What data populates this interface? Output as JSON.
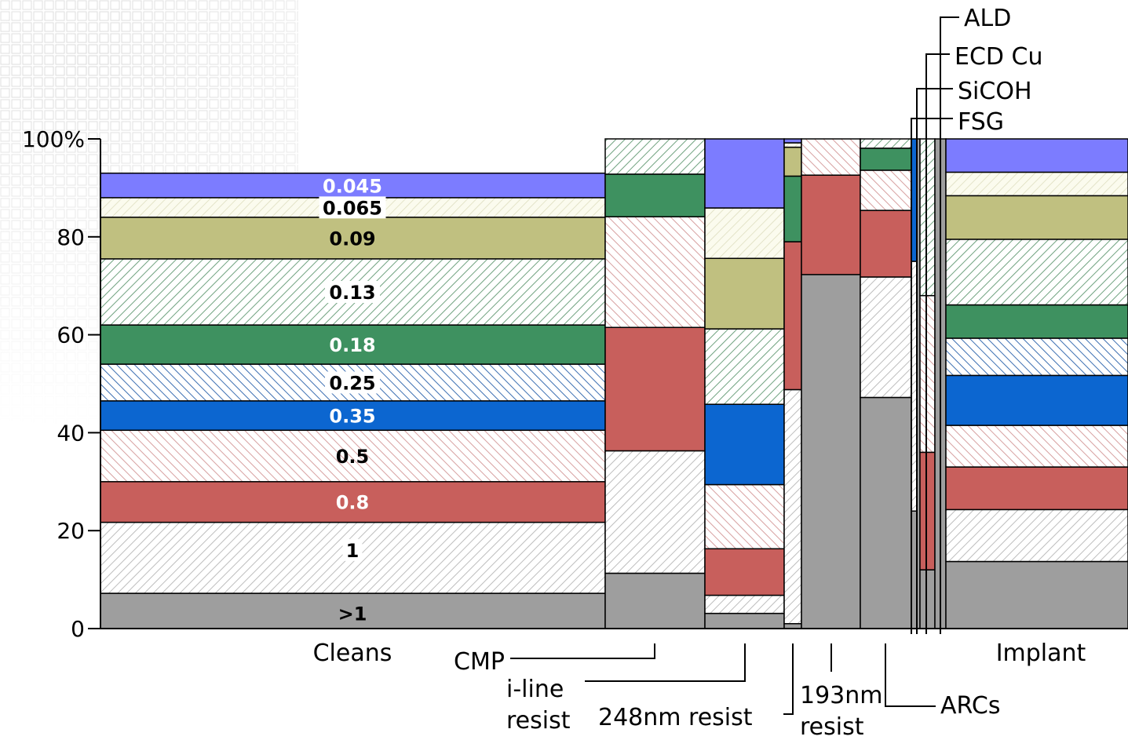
{
  "chart_data": {
    "type": "mosaic",
    "y_axis": {
      "ylim": [
        0,
        100
      ],
      "ticks": [
        "0",
        "20",
        "40",
        "60",
        "80",
        "100%"
      ]
    },
    "node_sizes": [
      "0.045",
      "0.065",
      "0.09",
      "0.13",
      "0.18",
      "0.25",
      "0.35",
      "0.5",
      "0.8",
      "1",
      ">1"
    ],
    "node_colors": {
      "0.045": "#7c7cff",
      "0.065": "#f6f6dc",
      "0.09": "#c0c080",
      "0.13": "#d4ead8",
      "0.18": "#3e9160",
      "0.25": "#bcd6f0",
      "0.35": "#0c66d0",
      "0.5": "#f6d6d6",
      "0.8": "#c85f5c",
      "1": "#eeeeee",
      ">1": "#9e9e9e"
    },
    "categories": [
      {
        "name": "Cleans",
        "share": [
          5,
          4,
          8.5,
          13.5,
          8,
          7.5,
          6,
          10.5,
          8.3,
          14.5,
          7.2
        ]
      },
      {
        "name": "CMP",
        "share": [
          0,
          0,
          0,
          7.2,
          8.7,
          0,
          0,
          22.6,
          25.2,
          25,
          11.3
        ]
      },
      {
        "name": "i-line resist",
        "share": [
          14.1,
          10.3,
          14.4,
          15.4,
          0,
          0,
          16.4,
          13.1,
          9.5,
          3.7,
          3.1
        ]
      },
      {
        "name": "248nm resist",
        "share": [
          0.8,
          0.9,
          5.9,
          0,
          13.4,
          0,
          0,
          0,
          30.2,
          47.8,
          1
        ]
      },
      {
        "name": "193nm resist",
        "share": [
          0,
          0,
          0,
          0,
          0,
          0,
          0,
          7.4,
          20.3,
          0,
          72.3
        ]
      },
      {
        "name": "ARCs",
        "share": [
          0,
          0,
          0,
          1.9,
          4.5,
          0,
          0,
          8.2,
          13.6,
          24.6,
          47.2
        ]
      },
      {
        "name": "FSG",
        "share": [
          0,
          0,
          0,
          0,
          0,
          0,
          25,
          0,
          0,
          51,
          24
        ]
      },
      {
        "name": "SiCOH",
        "share": [
          0,
          0,
          0,
          0,
          0,
          0,
          0,
          0,
          0,
          0,
          100
        ]
      },
      {
        "name": "ECD Cu",
        "share": [
          0,
          0,
          0,
          32,
          0,
          0,
          0,
          32,
          24,
          0,
          12
        ]
      },
      {
        "name": "ALD",
        "share": [
          0,
          0,
          0,
          0,
          0,
          0,
          0,
          0,
          0,
          0,
          100
        ]
      },
      {
        "name": "Implant",
        "share": [
          6.8,
          4.8,
          8.9,
          13.4,
          6.8,
          7.6,
          10.2,
          8.5,
          8.7,
          10.6,
          13.7
        ]
      }
    ],
    "labels": {
      "Cleans": "Cleans",
      "CMP": "CMP",
      "i_line_1": "i-line",
      "i_line_2": "resist",
      "krf": "248nm resist",
      "arf_1": "193nm",
      "arf_2": "resist",
      "ARCs": "ARCs",
      "FSG": "FSG",
      "SiCOH": "SiCOH",
      "ECD": "ECD Cu",
      "ALD": "ALD",
      "Implant": "Implant"
    },
    "grid": false,
    "legend": "in-bar labels on Cleans"
  }
}
